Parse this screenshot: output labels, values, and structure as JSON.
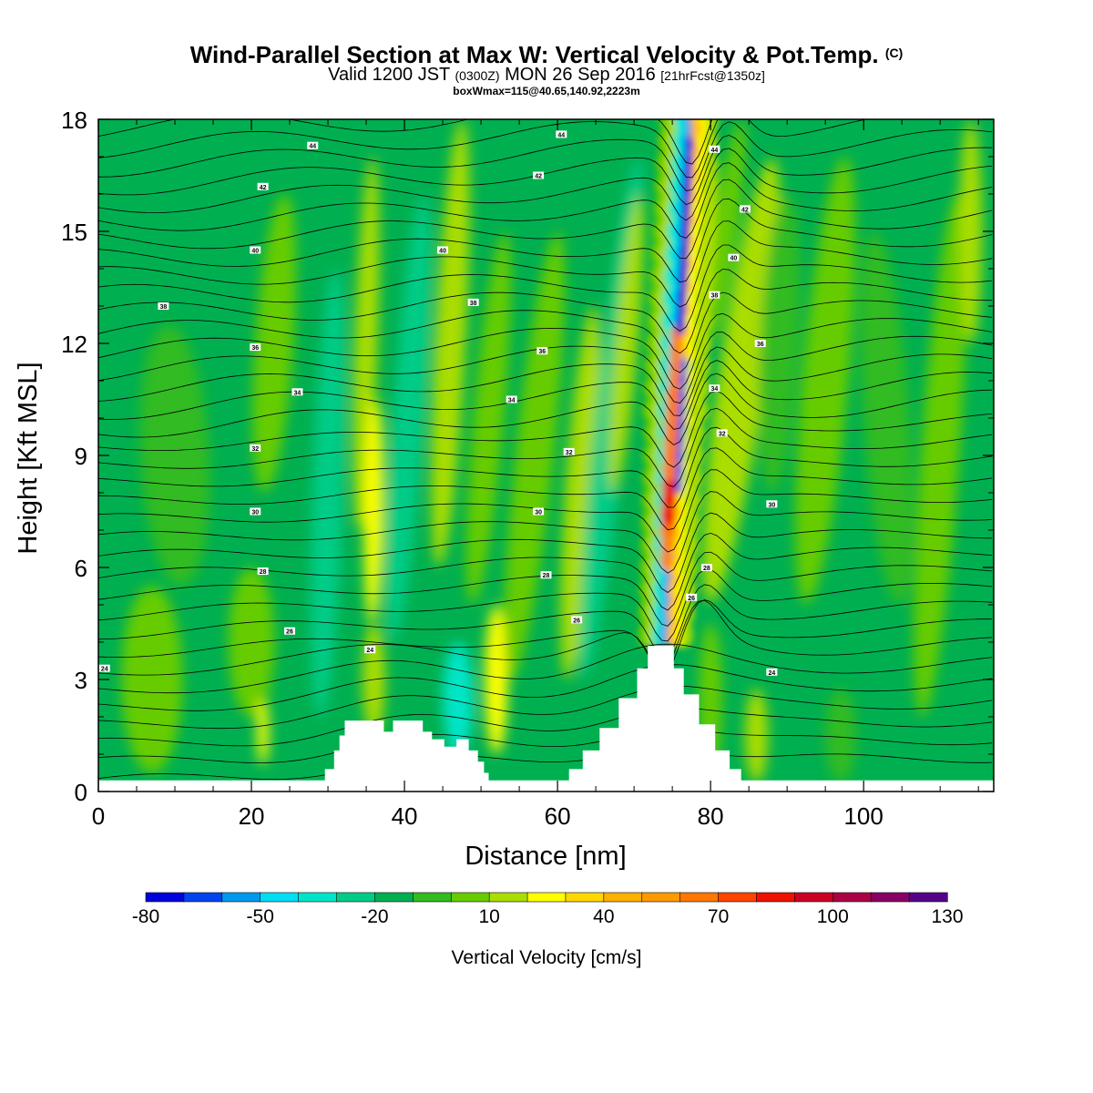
{
  "header": {
    "title": "Wind-Parallel Section at Max W: Vertical Velocity & Pot.Temp.",
    "title_mark": "(C)",
    "subtitle_a": "Valid 1200 JST",
    "subtitle_b": "(0300Z)",
    "subtitle_c": "MON 26 Sep 2016",
    "subtitle_d": "[21hrFcst@1350z]",
    "subtitle2": "boxWmax=115@40.65,140.92,2223m"
  },
  "chart_data": {
    "type": "heatmap",
    "xlabel": "Distance [nm]",
    "ylabel": "Height [Kft MSL]",
    "xlim": [
      0,
      117
    ],
    "ylim": [
      0,
      18
    ],
    "x_ticks": [
      0,
      20,
      40,
      60,
      80,
      100
    ],
    "y_ticks": [
      0,
      3,
      6,
      9,
      12,
      15,
      18
    ],
    "grid": false,
    "colorbar": {
      "label": "Vertical Velocity [cm/s]",
      "placement": "bottom",
      "tick_labels": [
        "-80",
        "-50",
        "-20",
        "10",
        "40",
        "70",
        "100",
        "130"
      ],
      "levels": [
        -80,
        -70,
        -60,
        -50,
        -40,
        -30,
        -20,
        -10,
        0,
        10,
        20,
        30,
        40,
        50,
        60,
        70,
        80,
        90,
        100,
        110,
        120,
        130
      ],
      "colors": [
        "#0000dd",
        "#0044ee",
        "#0099ee",
        "#00ddf5",
        "#00e5c8",
        "#00cc88",
        "#00b050",
        "#33bb22",
        "#66cc00",
        "#aadd00",
        "#ffff00",
        "#ffd700",
        "#ffb000",
        "#ff9900",
        "#ff7700",
        "#ff4400",
        "#ee1100",
        "#cc0022",
        "#aa0044",
        "#880066",
        "#550088"
      ]
    },
    "contour_field": "Potential Temperature",
    "contour_labels": [
      {
        "text": "44",
        "x": 28,
        "y": 17.3
      },
      {
        "text": "44",
        "x": 60.5,
        "y": 17.6
      },
      {
        "text": "44",
        "x": 80.5,
        "y": 17.2
      },
      {
        "text": "42",
        "x": 21.5,
        "y": 16.2
      },
      {
        "text": "42",
        "x": 57.5,
        "y": 16.5
      },
      {
        "text": "42",
        "x": 84.5,
        "y": 15.6
      },
      {
        "text": "40",
        "x": 20.5,
        "y": 14.5
      },
      {
        "text": "40",
        "x": 45,
        "y": 14.5
      },
      {
        "text": "40",
        "x": 83,
        "y": 14.3
      },
      {
        "text": "38",
        "x": 8.5,
        "y": 13.0
      },
      {
        "text": "38",
        "x": 49,
        "y": 13.1
      },
      {
        "text": "38",
        "x": 80.5,
        "y": 13.3
      },
      {
        "text": "36",
        "x": 20.5,
        "y": 11.9
      },
      {
        "text": "36",
        "x": 58,
        "y": 11.8
      },
      {
        "text": "36",
        "x": 86.5,
        "y": 12.0
      },
      {
        "text": "34",
        "x": 26,
        "y": 10.7
      },
      {
        "text": "34",
        "x": 54,
        "y": 10.5
      },
      {
        "text": "34",
        "x": 80.5,
        "y": 10.8
      },
      {
        "text": "32",
        "x": 20.5,
        "y": 9.2
      },
      {
        "text": "32",
        "x": 61.5,
        "y": 9.1
      },
      {
        "text": "32",
        "x": 81.5,
        "y": 9.6
      },
      {
        "text": "30",
        "x": 20.5,
        "y": 7.5
      },
      {
        "text": "30",
        "x": 57.5,
        "y": 7.5
      },
      {
        "text": "30",
        "x": 88,
        "y": 7.7
      },
      {
        "text": "28",
        "x": 21.5,
        "y": 5.9
      },
      {
        "text": "28",
        "x": 58.5,
        "y": 5.8
      },
      {
        "text": "28",
        "x": 79.5,
        "y": 6.0
      },
      {
        "text": "26",
        "x": 25,
        "y": 4.3
      },
      {
        "text": "26",
        "x": 62.5,
        "y": 4.6
      },
      {
        "text": "26",
        "x": 77.5,
        "y": 5.2
      },
      {
        "text": "24",
        "x": 35.5,
        "y": 3.8
      },
      {
        "text": "24",
        "x": 0.8,
        "y": 3.3
      },
      {
        "text": "24",
        "x": 88,
        "y": 3.2
      }
    ],
    "terrain_profile": [
      [
        0,
        0.3
      ],
      [
        29,
        0.3
      ],
      [
        29.6,
        0.6
      ],
      [
        30.8,
        1.1
      ],
      [
        31.5,
        1.5
      ],
      [
        32.2,
        1.9
      ],
      [
        36,
        1.9
      ],
      [
        37.3,
        1.6
      ],
      [
        38.5,
        1.9
      ],
      [
        41.5,
        1.9
      ],
      [
        42.4,
        1.6
      ],
      [
        43.6,
        1.4
      ],
      [
        45.2,
        1.2
      ],
      [
        46.8,
        1.4
      ],
      [
        48.4,
        1.1
      ],
      [
        49.6,
        0.8
      ],
      [
        50.4,
        0.5
      ],
      [
        51,
        0.3
      ],
      [
        60,
        0.3
      ],
      [
        61.5,
        0.6
      ],
      [
        63.3,
        1.1
      ],
      [
        65.5,
        1.7
      ],
      [
        68,
        2.5
      ],
      [
        70.4,
        3.3
      ],
      [
        71.8,
        3.9
      ],
      [
        74.2,
        3.9
      ],
      [
        75.2,
        3.3
      ],
      [
        76.5,
        2.6
      ],
      [
        78.5,
        1.8
      ],
      [
        80.6,
        1.1
      ],
      [
        82.5,
        0.6
      ],
      [
        84,
        0.3
      ],
      [
        117,
        0.3
      ]
    ]
  }
}
